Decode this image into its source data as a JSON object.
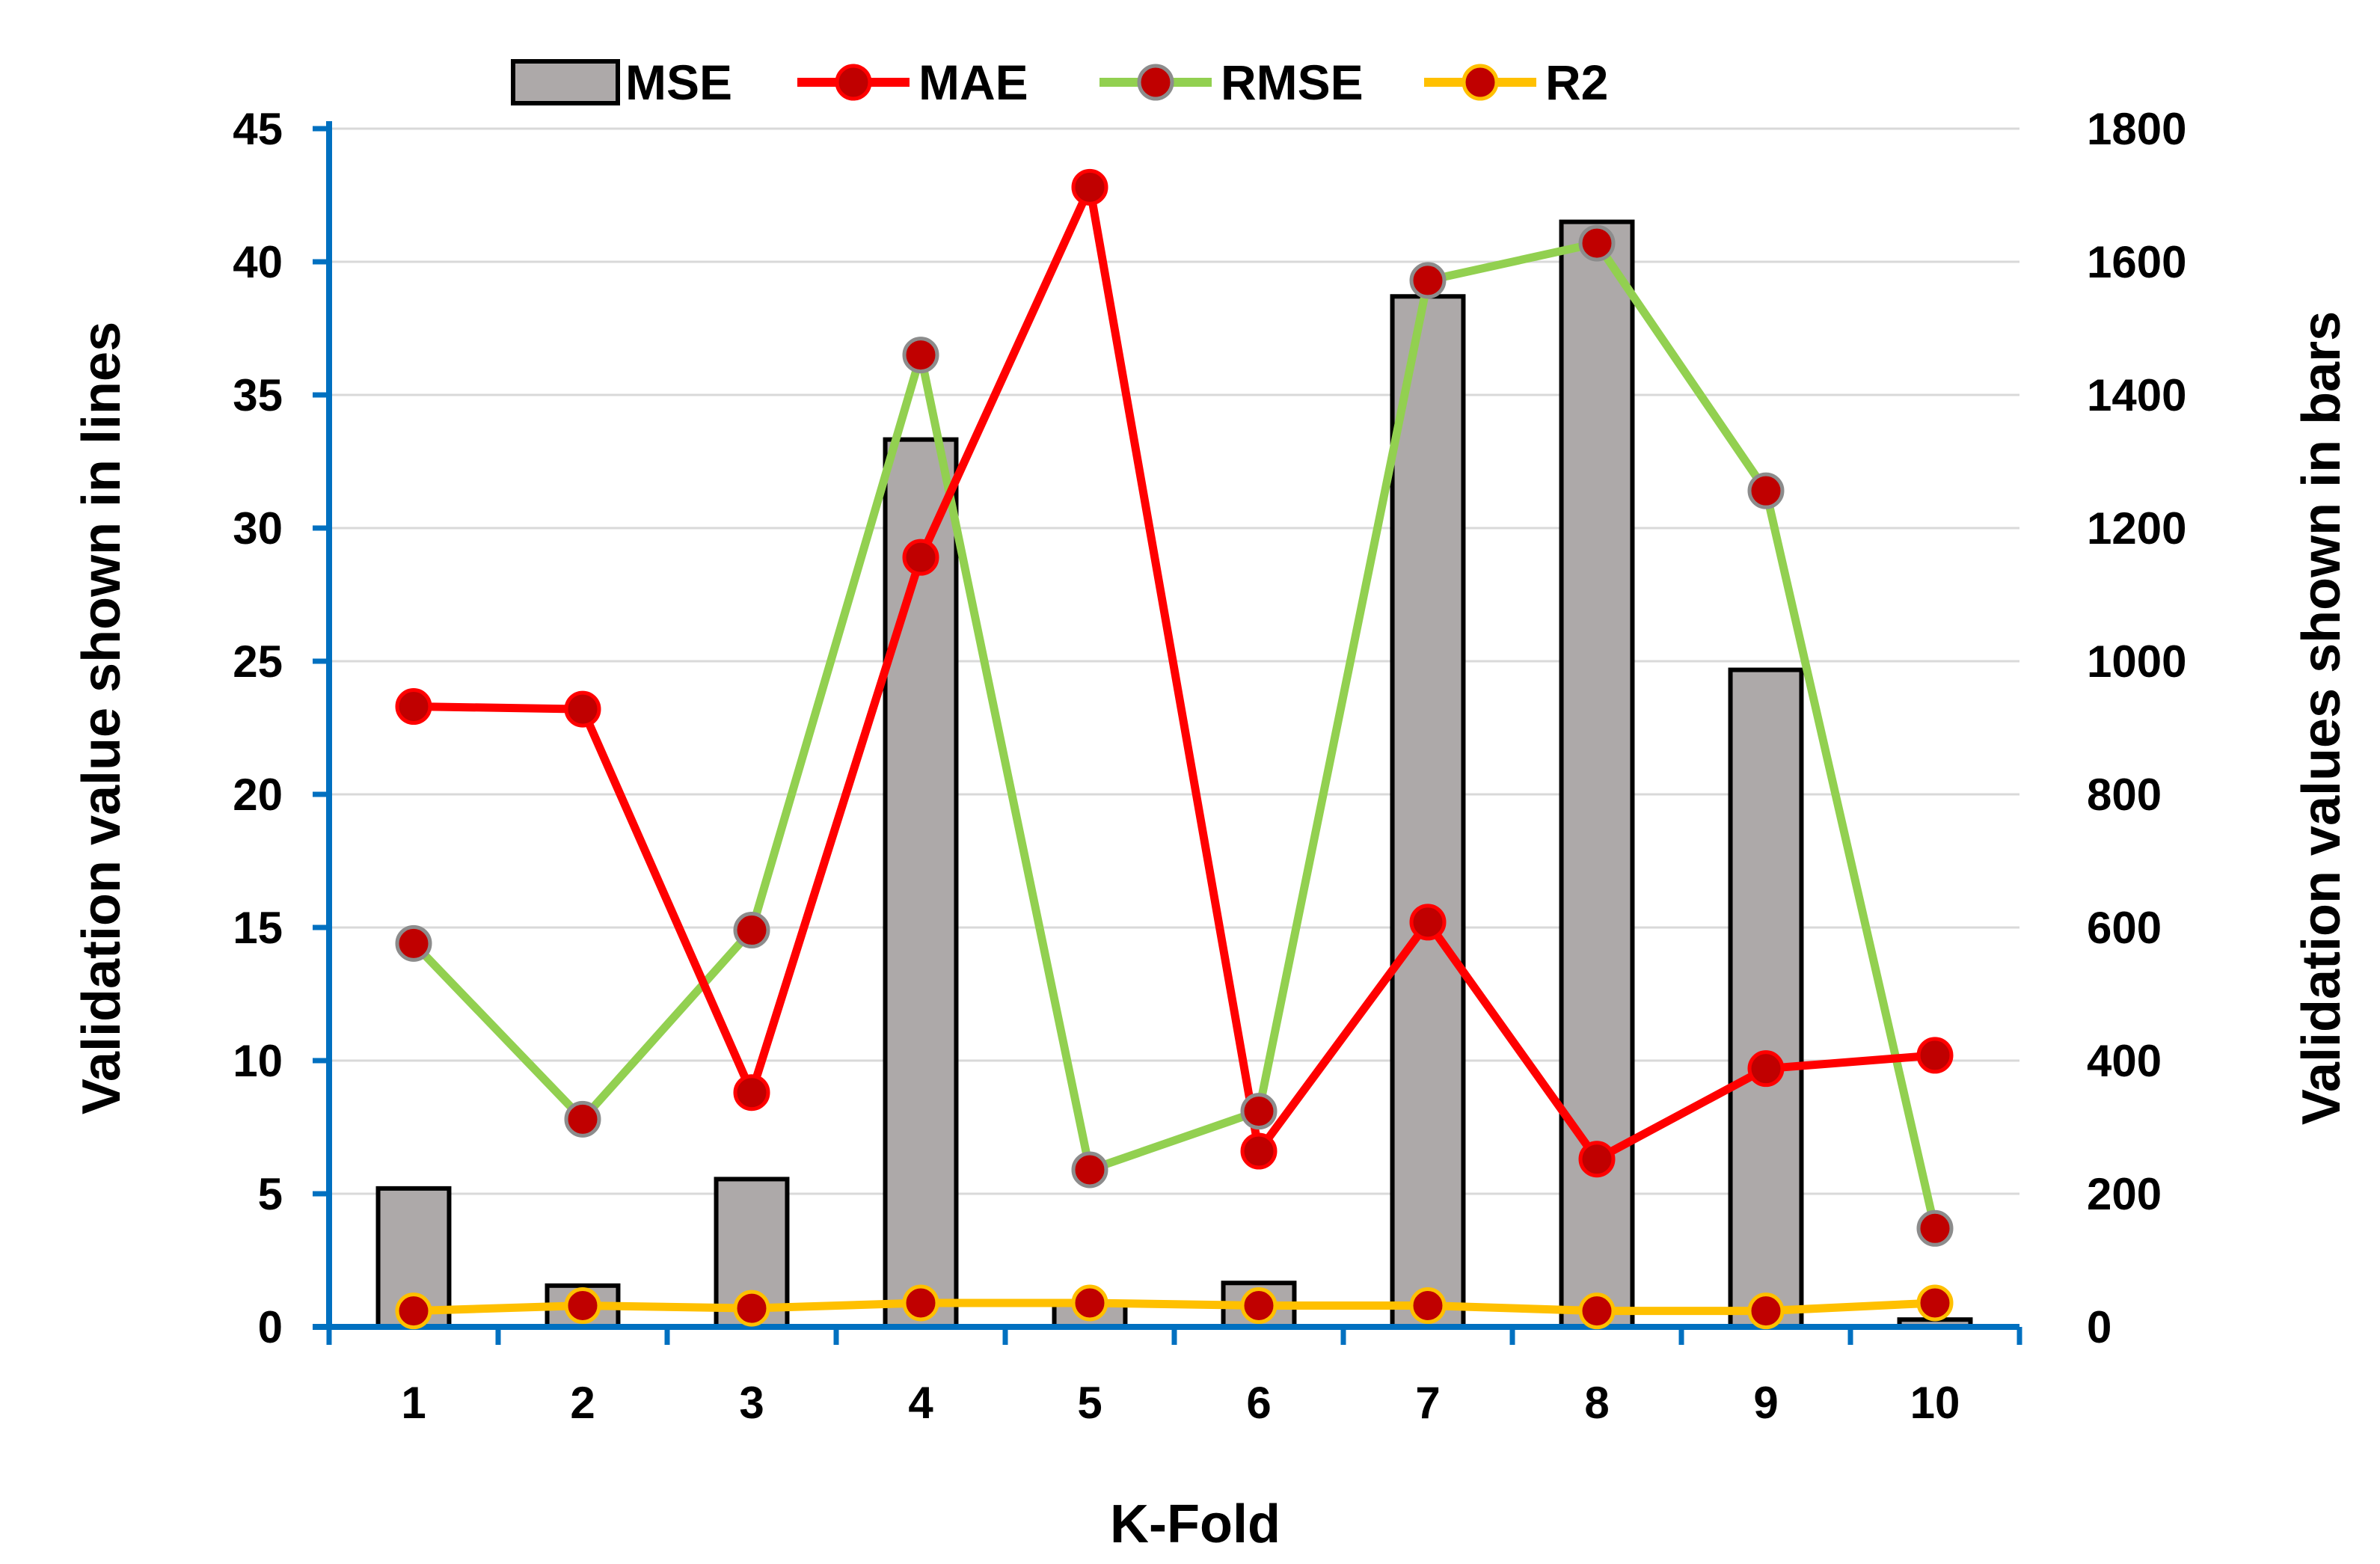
{
  "chart_data": {
    "type": "bar+line",
    "title": "",
    "xlabel": "K-Fold",
    "ylabel_left": "Validation value shown in lines",
    "ylabel_right": "Validation values shown in bars",
    "categories": [
      "1",
      "2",
      "3",
      "4",
      "5",
      "6",
      "7",
      "8",
      "9",
      "10"
    ],
    "ylim_left": [
      0,
      45
    ],
    "yticks_left": [
      0,
      5,
      10,
      15,
      20,
      25,
      30,
      35,
      40,
      45
    ],
    "ylim_right": [
      0,
      1800
    ],
    "yticks_right": [
      0,
      200,
      400,
      600,
      800,
      1000,
      1200,
      1400,
      1600,
      1800
    ],
    "grid": true,
    "legend_position": "top",
    "bars": {
      "name": "MSE",
      "axis": "right",
      "color": "#ADA9A9",
      "edge_color": "#000000",
      "values": [
        208,
        62,
        222,
        1333,
        35,
        66,
        1548,
        1660,
        987,
        11
      ]
    },
    "series": [
      {
        "name": "MAE",
        "axis": "left",
        "color": "#FF0000",
        "marker_color": "#C00000",
        "values": [
          23.3,
          23.2,
          8.8,
          28.9,
          42.8,
          6.6,
          15.2,
          6.3,
          9.7,
          10.2
        ]
      },
      {
        "name": "RMSE",
        "axis": "left",
        "color": "#92D050",
        "marker_color": "#C00000",
        "values": [
          14.4,
          7.8,
          14.9,
          36.5,
          5.9,
          8.1,
          39.3,
          40.7,
          31.4,
          3.7
        ]
      },
      {
        "name": "R2",
        "axis": "left",
        "color": "#FFC000",
        "marker_color": "#C00000",
        "values": [
          0.6,
          0.8,
          0.7,
          0.9,
          0.9,
          0.8,
          0.8,
          0.6,
          0.6,
          0.9
        ]
      }
    ],
    "axis_color": "#0070C0",
    "grid_color": "#D9D9D9"
  }
}
